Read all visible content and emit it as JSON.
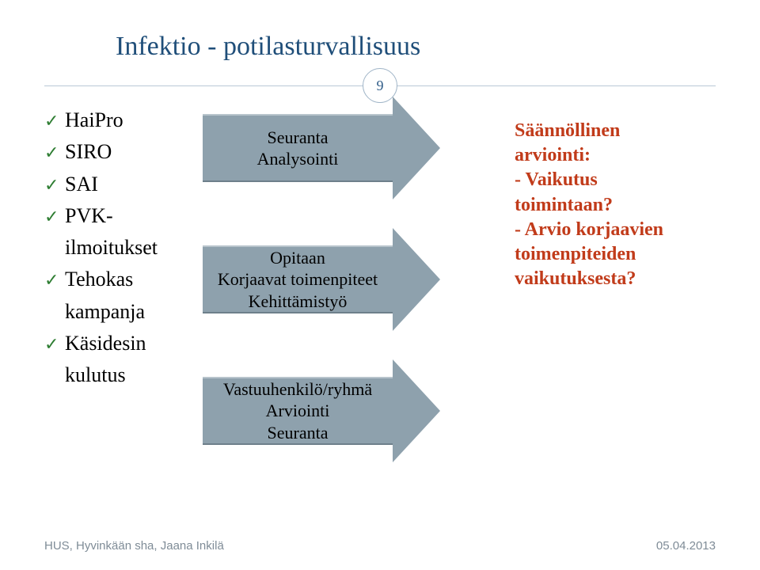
{
  "title": "Infektio  - potilasturvallisuus",
  "page_number": "9",
  "bullets": {
    "items": [
      {
        "text": "HaiPro",
        "check": true
      },
      {
        "text": "SIRO",
        "check": true
      },
      {
        "text": "SAI",
        "check": true
      },
      {
        "text": "PVK-",
        "check": true
      },
      {
        "text": "ilmoitukset",
        "check": false
      },
      {
        "text": "Tehokas",
        "check": true
      },
      {
        "text": "kampanja",
        "check": false
      },
      {
        "text": "Käsidesin",
        "check": true
      },
      {
        "text": "kulutus",
        "check": false
      }
    ],
    "check_color": "#2e7d32",
    "text_color": "#000000",
    "font_size": 26
  },
  "arrows": {
    "fill_color": "#8ea1ad",
    "text_color": "#000000",
    "font_size": 22,
    "items": [
      {
        "lines": [
          "Seuranta",
          "Analysointi"
        ]
      },
      {
        "lines": [
          "Opitaan",
          "Korjaavat toimenpiteet",
          "Kehittämistyö"
        ]
      },
      {
        "lines": [
          "Vastuuhenkilö/ryhmä",
          "Arviointi",
          "Seuranta"
        ]
      }
    ]
  },
  "right_text": {
    "color": "#c13b1a",
    "font_size": 24,
    "lines": [
      "Säännöllinen",
      "arviointi:",
      "- Vaikutus",
      "toimintaan?",
      "- Arvio korjaavien",
      "toimenpiteiden",
      "vaikutuksesta?"
    ]
  },
  "footer": {
    "left": "HUS, Hyvinkään sha, Jaana Inkilä",
    "right": "05.04.2013",
    "color": "#7f8c97"
  },
  "colors": {
    "title": "#1f4e79",
    "divider": "#b9c9d6",
    "circle_border": "#9fb4c7",
    "background": "#ffffff"
  }
}
